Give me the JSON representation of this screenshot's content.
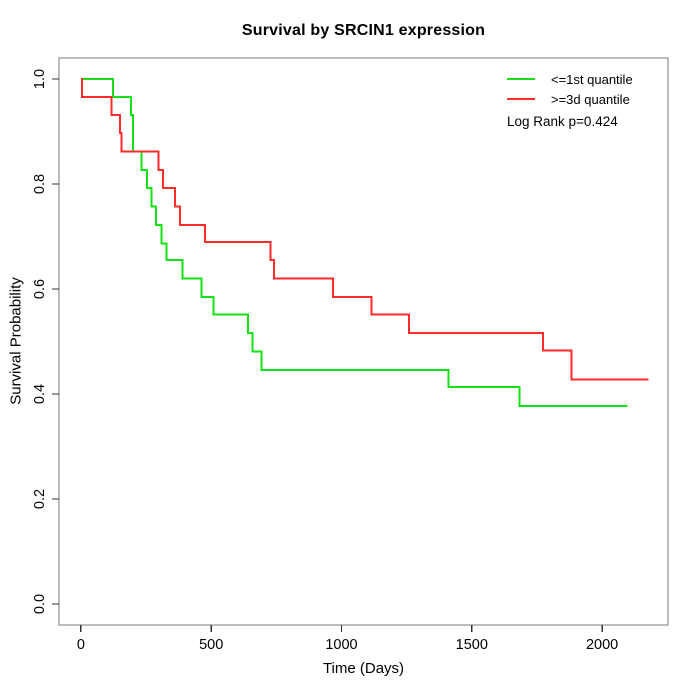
{
  "title": "Survival by SRCIN1 expression",
  "legend": {
    "items": [
      {
        "label": "<=1st quantile",
        "color": "#15e015"
      },
      {
        "label": ">=3d quantile",
        "color": "#ff2a2a"
      }
    ],
    "p_value_label": "Log Rank p=0.424"
  },
  "chart_data": {
    "type": "line",
    "subtype": "kaplan-meier-step",
    "title": "Survival by SRCIN1 expression",
    "xlabel": "Time (Days)",
    "ylabel": "Survival Probability",
    "x_ticks": [
      0,
      500,
      1000,
      1500,
      2000
    ],
    "y_ticks": [
      0.0,
      0.2,
      0.4,
      0.6,
      0.8,
      1.0
    ],
    "xlim": [
      -84,
      2253
    ],
    "ylim": [
      -0.04,
      1.04
    ],
    "grid": false,
    "legend_position": "top-right",
    "annotation": "Log Rank p=0.424",
    "box_color": "#787878",
    "tick_color": "#303030",
    "text_color": "#000000",
    "series": [
      {
        "name": "<=1st quantile",
        "color": "#15e015",
        "steps": [
          [
            0,
            1.0
          ],
          [
            123,
            0.966
          ],
          [
            192,
            0.931
          ],
          [
            200,
            0.862
          ],
          [
            233,
            0.827
          ],
          [
            254,
            0.792
          ],
          [
            271,
            0.757
          ],
          [
            288,
            0.722
          ],
          [
            310,
            0.687
          ],
          [
            329,
            0.655
          ],
          [
            390,
            0.62
          ],
          [
            463,
            0.585
          ],
          [
            508,
            0.551
          ],
          [
            642,
            0.516
          ],
          [
            659,
            0.481
          ],
          [
            694,
            0.446
          ],
          [
            1410,
            0.413
          ],
          [
            1683,
            0.377
          ]
        ],
        "end_time": 2097
      },
      {
        "name": ">=3d quantile",
        "color": "#ff2a2a",
        "steps": [
          [
            0,
            1.0
          ],
          [
            5,
            0.966
          ],
          [
            118,
            0.931
          ],
          [
            150,
            0.897
          ],
          [
            155,
            0.862
          ],
          [
            297,
            0.827
          ],
          [
            316,
            0.792
          ],
          [
            361,
            0.757
          ],
          [
            380,
            0.722
          ],
          [
            476,
            0.69
          ],
          [
            728,
            0.655
          ],
          [
            741,
            0.62
          ],
          [
            968,
            0.585
          ],
          [
            1116,
            0.551
          ],
          [
            1260,
            0.516
          ],
          [
            1774,
            0.483
          ],
          [
            1883,
            0.428
          ]
        ],
        "end_time": 2178
      }
    ]
  }
}
